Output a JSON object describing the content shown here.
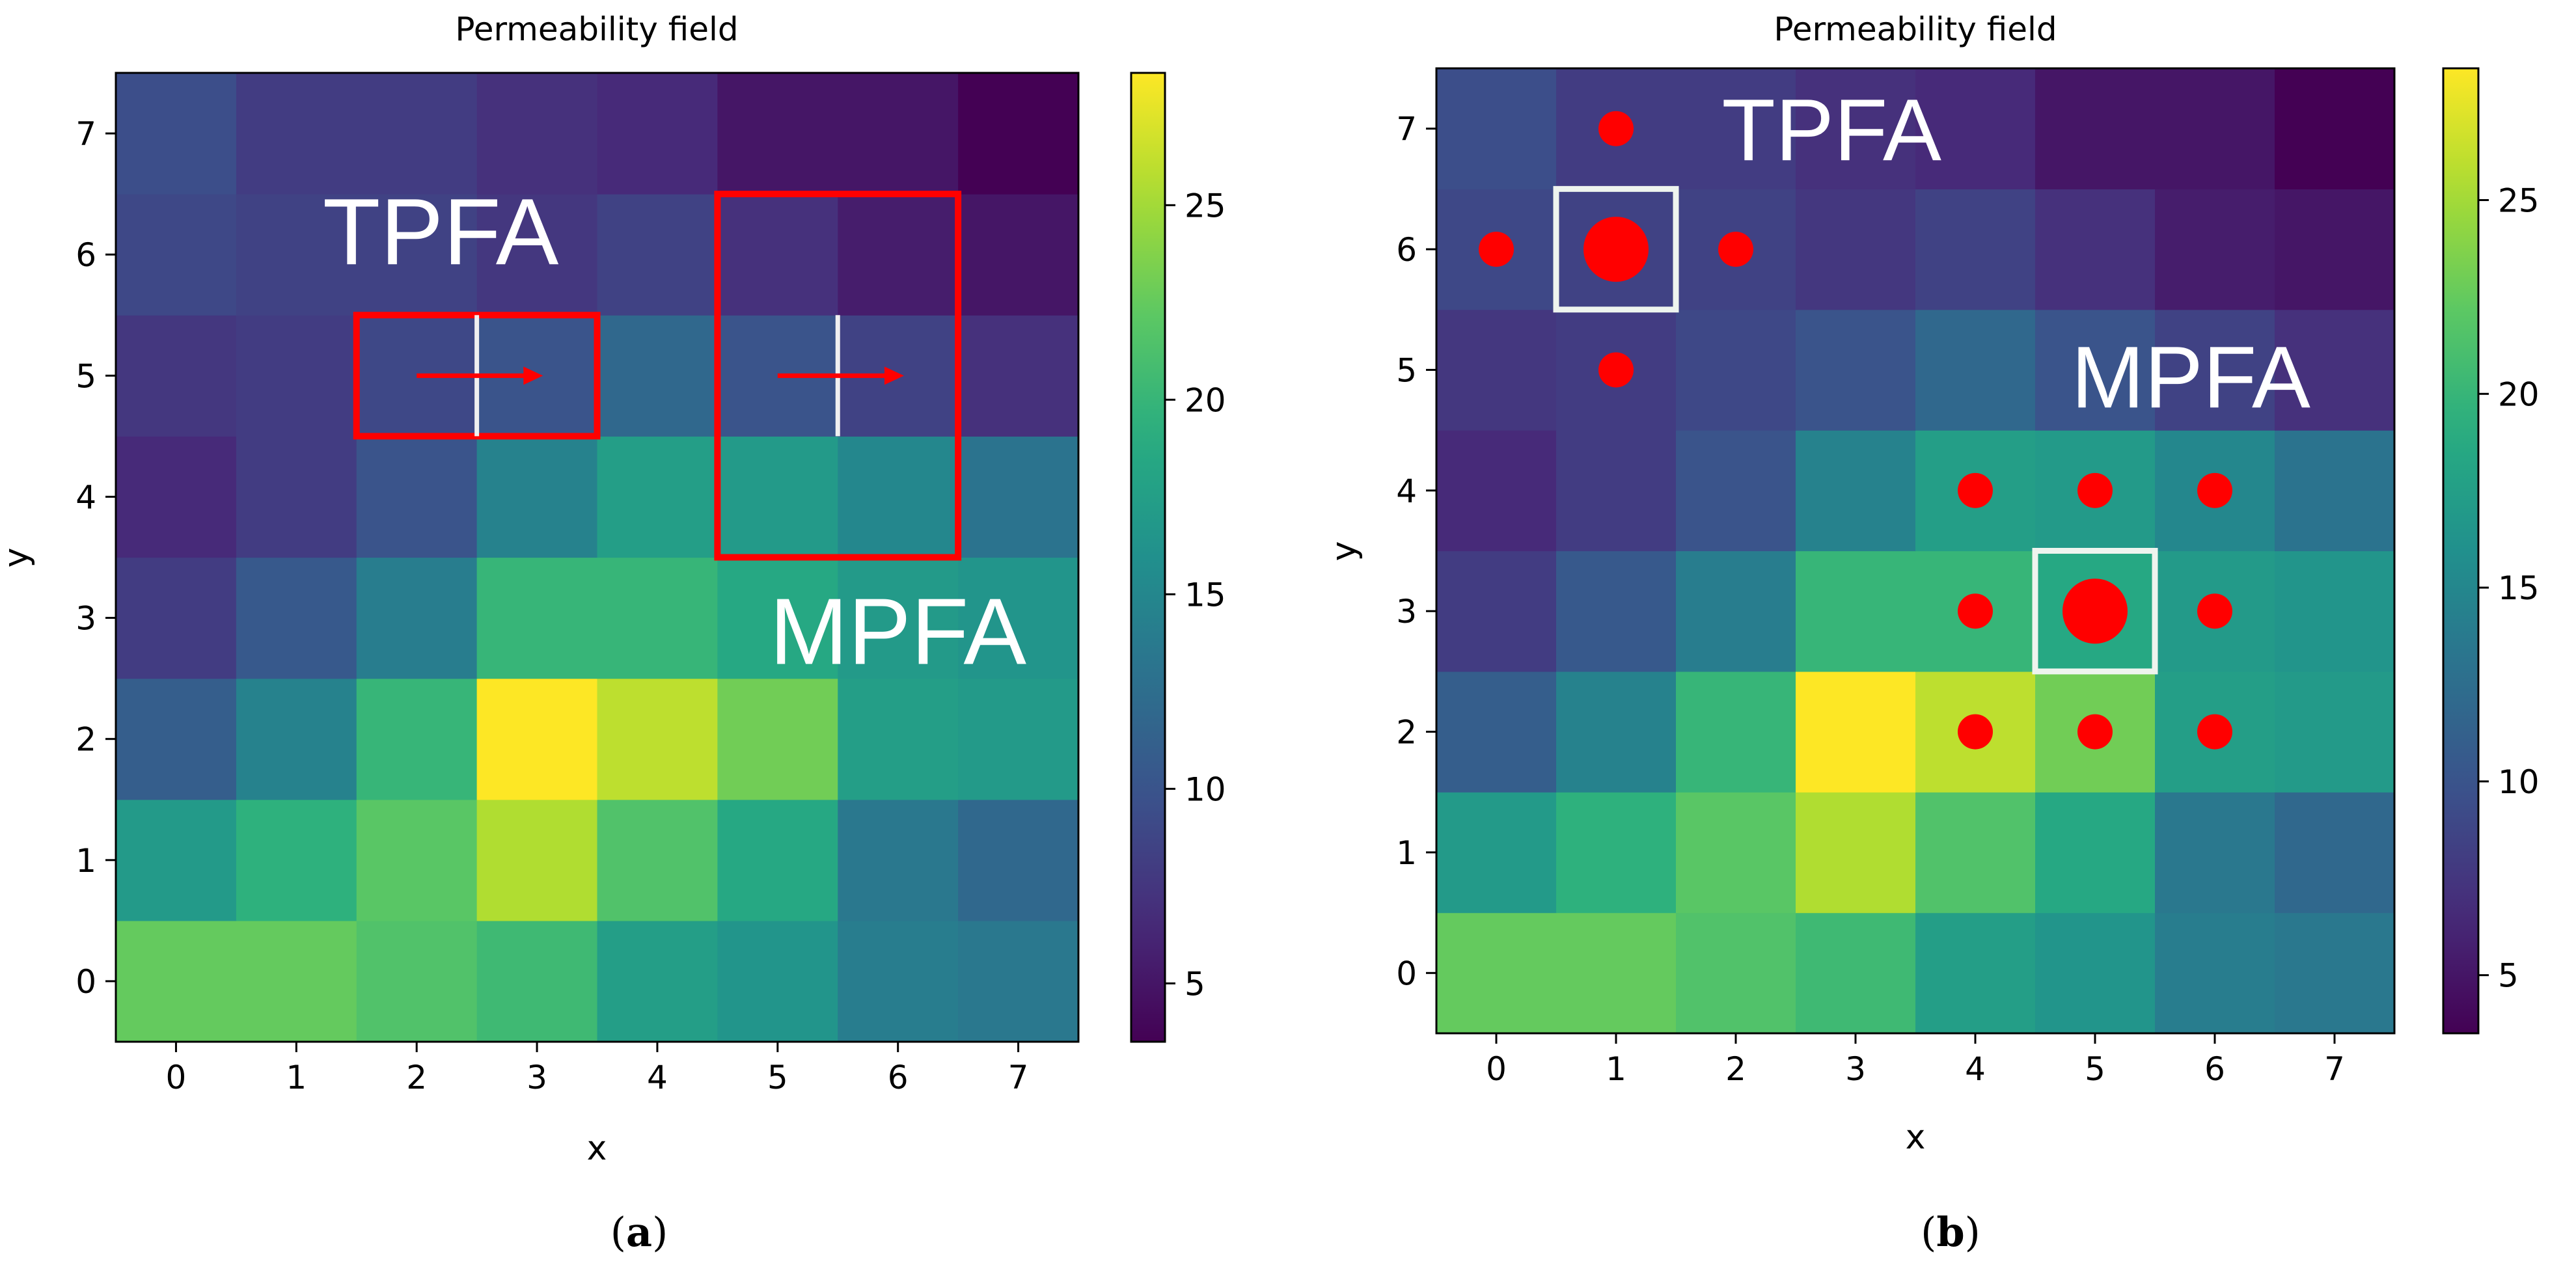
{
  "chart_data": [
    {
      "type": "heatmap",
      "panel_label": "(a)",
      "label_letter": "a",
      "title": "Permeability field",
      "xlabel": "x",
      "ylabel": "y",
      "x_ticks": [
        0,
        1,
        2,
        3,
        4,
        5,
        6,
        7
      ],
      "y_ticks": [
        0,
        1,
        2,
        3,
        4,
        5,
        6,
        7
      ],
      "xlim": [
        -0.5,
        7.5
      ],
      "ylim": [
        -0.5,
        7.5
      ],
      "colormap": "viridis",
      "colorbar": {
        "range": [
          3.5,
          28.4
        ],
        "ticks": [
          5,
          10,
          15,
          20,
          25
        ]
      },
      "values_row_y0_to_y7": [
        [
          22.5,
          22.5,
          21.5,
          20.5,
          17.5,
          16.5,
          14.0,
          13.5
        ],
        [
          17.0,
          19.5,
          22.0,
          25.5,
          21.5,
          18.5,
          13.5,
          12.0
        ],
        [
          11.0,
          14.5,
          20.0,
          28.4,
          26.0,
          23.0,
          17.5,
          17.0
        ],
        [
          8.0,
          10.5,
          14.0,
          20.0,
          20.0,
          18.5,
          17.0,
          16.5
        ],
        [
          6.5,
          8.0,
          10.0,
          14.5,
          17.5,
          17.0,
          15.0,
          13.0
        ],
        [
          7.5,
          8.0,
          9.0,
          10.0,
          12.0,
          10.0,
          8.5,
          7.0
        ],
        [
          9.0,
          8.5,
          8.5,
          7.5,
          8.5,
          7.0,
          5.5,
          5.0
        ],
        [
          9.5,
          8.0,
          8.0,
          7.0,
          6.5,
          5.0,
          5.0,
          3.5
        ]
      ],
      "annotations": {
        "text_labels": [
          {
            "text": "TPFA",
            "x": 2.2,
            "y": 6.2
          },
          {
            "text": "MPFA",
            "x": 6.0,
            "y": 2.9
          }
        ],
        "rectangles": [
          {
            "method": "TPFA",
            "x_range": [
              1.5,
              3.5
            ],
            "y_range": [
              4.5,
              5.5
            ]
          },
          {
            "method": "MPFA",
            "x_range": [
              4.5,
              6.5
            ],
            "y_range": [
              3.5,
              6.5
            ]
          }
        ],
        "interfaces": [
          {
            "x": 2.5,
            "y_range": [
              4.5,
              5.5
            ]
          },
          {
            "x": 5.5,
            "y_range": [
              4.5,
              5.5
            ]
          }
        ],
        "arrows": [
          {
            "from": [
              2.0,
              5.0
            ],
            "to": [
              3.05,
              5.0
            ]
          },
          {
            "from": [
              5.0,
              5.0
            ],
            "to": [
              6.05,
              5.0
            ]
          }
        ]
      }
    },
    {
      "type": "heatmap",
      "panel_label": "(b)",
      "label_letter": "b",
      "title": "Permeability field",
      "xlabel": "x",
      "ylabel": "y",
      "x_ticks": [
        0,
        1,
        2,
        3,
        4,
        5,
        6,
        7
      ],
      "y_ticks": [
        0,
        1,
        2,
        3,
        4,
        5,
        6,
        7
      ],
      "xlim": [
        -0.5,
        7.5
      ],
      "ylim": [
        -0.5,
        7.5
      ],
      "colormap": "viridis",
      "colorbar": {
        "range": [
          3.5,
          28.4
        ],
        "ticks": [
          5,
          10,
          15,
          20,
          25
        ]
      },
      "values_row_y0_to_y7": [
        [
          22.5,
          22.5,
          21.5,
          20.5,
          17.5,
          16.5,
          14.0,
          13.5
        ],
        [
          17.0,
          19.5,
          22.0,
          25.5,
          21.5,
          18.5,
          13.5,
          12.0
        ],
        [
          11.0,
          14.5,
          20.0,
          28.4,
          26.0,
          23.0,
          17.5,
          17.0
        ],
        [
          8.0,
          10.5,
          14.0,
          20.0,
          20.0,
          18.5,
          17.0,
          16.5
        ],
        [
          6.5,
          8.0,
          10.0,
          14.5,
          17.5,
          17.0,
          15.0,
          13.0
        ],
        [
          7.5,
          8.0,
          9.0,
          10.0,
          12.0,
          10.0,
          8.5,
          7.0
        ],
        [
          9.0,
          8.5,
          8.5,
          7.5,
          8.5,
          7.0,
          5.5,
          5.0
        ],
        [
          9.5,
          8.0,
          8.0,
          7.0,
          6.5,
          5.0,
          5.0,
          3.5
        ]
      ],
      "annotations": {
        "text_labels": [
          {
            "text": "TPFA",
            "x": 2.8,
            "y": 7.0
          },
          {
            "text": "MPFA",
            "x": 5.8,
            "y": 4.95
          }
        ],
        "rectangles": [
          {
            "method": "TPFA",
            "x_range": [
              0.5,
              1.5
            ],
            "y_range": [
              5.5,
              6.5
            ]
          },
          {
            "method": "MPFA",
            "x_range": [
              4.5,
              5.5
            ],
            "y_range": [
              2.5,
              3.5
            ]
          }
        ],
        "center_points": [
          {
            "method": "TPFA",
            "x": 1,
            "y": 6
          },
          {
            "method": "MPFA",
            "x": 5,
            "y": 3
          }
        ],
        "stencil_points": [
          {
            "method": "TPFA",
            "x": 1,
            "y": 7
          },
          {
            "method": "TPFA",
            "x": 0,
            "y": 6
          },
          {
            "method": "TPFA",
            "x": 2,
            "y": 6
          },
          {
            "method": "TPFA",
            "x": 1,
            "y": 5
          },
          {
            "method": "MPFA",
            "x": 4,
            "y": 4
          },
          {
            "method": "MPFA",
            "x": 5,
            "y": 4
          },
          {
            "method": "MPFA",
            "x": 6,
            "y": 4
          },
          {
            "method": "MPFA",
            "x": 4,
            "y": 3
          },
          {
            "method": "MPFA",
            "x": 6,
            "y": 3
          },
          {
            "method": "MPFA",
            "x": 4,
            "y": 2
          },
          {
            "method": "MPFA",
            "x": 5,
            "y": 2
          },
          {
            "method": "MPFA",
            "x": 6,
            "y": 2
          }
        ]
      }
    }
  ],
  "colors": {
    "annotation_red": "#ff0000",
    "selection_box": "#eef4ee",
    "interface_line": "#f0f0f0",
    "label_text": "#ffffff"
  }
}
